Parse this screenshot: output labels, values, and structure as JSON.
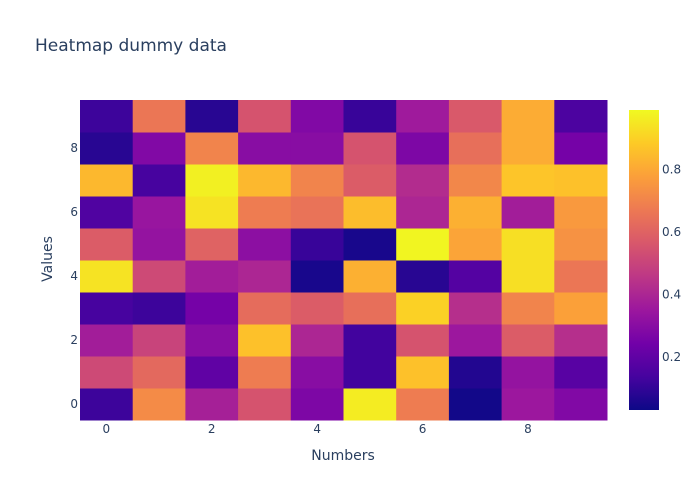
{
  "chart_data": {
    "type": "heatmap",
    "title": "Heatmap dummy data",
    "xlabel": "Numbers",
    "ylabel": "Values",
    "x": [
      0,
      1,
      2,
      3,
      4,
      5,
      6,
      7,
      8,
      9
    ],
    "y": [
      0,
      1,
      2,
      3,
      4,
      5,
      6,
      7,
      8,
      9
    ],
    "x_ticks": [
      0,
      2,
      4,
      6,
      8
    ],
    "y_ticks": [
      0,
      2,
      4,
      6,
      8
    ],
    "colorscale": "plasma",
    "zmin": 0.03,
    "zmax": 0.99,
    "colorbar_ticks": [
      0.2,
      0.4,
      0.6,
      0.8
    ],
    "z": [
      [
        0.12,
        0.72,
        0.38,
        0.55,
        0.27,
        0.96,
        0.68,
        0.04,
        0.35,
        0.28
      ],
      [
        0.52,
        0.62,
        0.2,
        0.68,
        0.3,
        0.13,
        0.86,
        0.07,
        0.33,
        0.18
      ],
      [
        0.37,
        0.5,
        0.3,
        0.86,
        0.4,
        0.13,
        0.55,
        0.35,
        0.58,
        0.43
      ],
      [
        0.14,
        0.12,
        0.25,
        0.63,
        0.58,
        0.64,
        0.9,
        0.43,
        0.7,
        0.78
      ],
      [
        0.94,
        0.52,
        0.37,
        0.4,
        0.05,
        0.82,
        0.08,
        0.17,
        0.93,
        0.66
      ],
      [
        0.58,
        0.33,
        0.6,
        0.31,
        0.11,
        0.05,
        0.98,
        0.79,
        0.93,
        0.74
      ],
      [
        0.16,
        0.34,
        0.94,
        0.68,
        0.65,
        0.85,
        0.4,
        0.82,
        0.37,
        0.76
      ],
      [
        0.84,
        0.14,
        0.97,
        0.84,
        0.7,
        0.58,
        0.42,
        0.71,
        0.87,
        0.86
      ],
      [
        0.08,
        0.28,
        0.7,
        0.3,
        0.3,
        0.55,
        0.27,
        0.64,
        0.81,
        0.25
      ],
      [
        0.12,
        0.66,
        0.08,
        0.55,
        0.28,
        0.11,
        0.36,
        0.57,
        0.81,
        0.15
      ]
    ]
  }
}
